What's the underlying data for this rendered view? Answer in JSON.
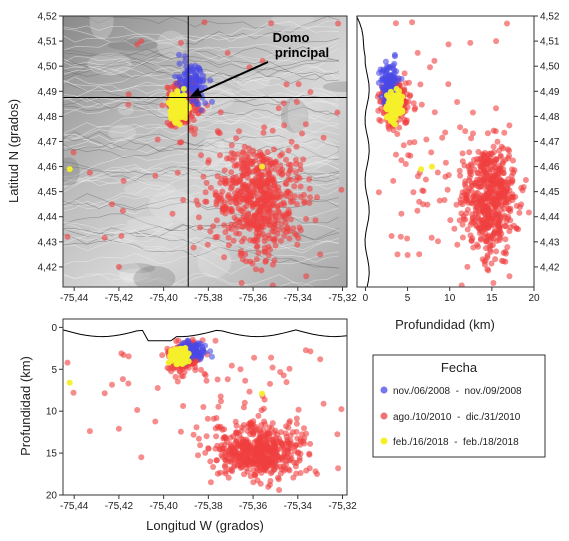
{
  "chart_data": [
    {
      "type": "scatter",
      "panel": "map",
      "title": "",
      "xlabel": "",
      "ylabel": "Latitud N (grados)",
      "xlim": [
        -75.445,
        -75.318
      ],
      "ylim": [
        4.412,
        4.52
      ],
      "xticks": [
        "-75,44",
        "-75,42",
        "-75,40",
        "-75,38",
        "-75,36",
        "-75,34",
        "-75,32"
      ],
      "xtick_values": [
        -75.44,
        -75.42,
        -75.4,
        -75.38,
        -75.36,
        -75.34,
        -75.32
      ],
      "yticks": [
        "4,52",
        "4,51",
        "4,50",
        "4,49",
        "4,48",
        "4,47",
        "4,46",
        "4,45",
        "4,44",
        "4,43",
        "4,42"
      ],
      "ytick_values": [
        4.52,
        4.51,
        4.5,
        4.49,
        4.48,
        4.47,
        4.46,
        4.45,
        4.44,
        4.43,
        4.42
      ],
      "background": "shaded-relief-topography",
      "crosshair": {
        "x": -75.389,
        "y": 4.4875
      },
      "annotation": {
        "lines": [
          "Domo",
          "principal"
        ],
        "arrow_to": [
          -75.389,
          4.4875
        ]
      }
    },
    {
      "type": "scatter",
      "panel": "depth-vs-latitude",
      "xlabel": "Profundidad (km)",
      "ylabel": "",
      "xlim": [
        -1,
        20
      ],
      "ylim": [
        4.412,
        4.52
      ],
      "xticks": [
        "0",
        "5",
        "10",
        "15",
        "20"
      ],
      "xtick_values": [
        0,
        5,
        10,
        15,
        20
      ],
      "yticks": [
        "4,52",
        "4,51",
        "4,50",
        "4,49",
        "4,48",
        "4,47",
        "4,46",
        "4,45",
        "4,44",
        "4,43",
        "4,42"
      ],
      "ytick_values": [
        4.52,
        4.51,
        4.5,
        4.49,
        4.48,
        4.47,
        4.46,
        4.45,
        4.44,
        4.43,
        4.42
      ]
    },
    {
      "type": "scatter",
      "panel": "longitude-vs-depth",
      "xlabel": "Longitud W (grados)",
      "ylabel": "Profundidad (km)",
      "xlim": [
        -75.445,
        -75.318
      ],
      "ylim": [
        20,
        -1
      ],
      "xticks": [
        "-75,44",
        "-75,42",
        "-75,40",
        "-75,38",
        "-75,36",
        "-75,34",
        "-75,32"
      ],
      "xtick_values": [
        -75.44,
        -75.42,
        -75.4,
        -75.38,
        -75.36,
        -75.34,
        -75.32
      ],
      "yticks": [
        "0",
        "5",
        "10",
        "15",
        "20"
      ],
      "ytick_values": [
        0,
        5,
        10,
        15,
        20
      ]
    }
  ],
  "series": [
    {
      "name": "nov./06/2008  -  nov./09/2008",
      "color": "#4a4ae6"
    },
    {
      "name": "ago./10/2010  -  dic./31/2010",
      "color": "#f04040"
    },
    {
      "name": "feb./16/2018  -  feb./18/2018",
      "color": "#f5ef2a"
    }
  ],
  "legend": {
    "title": "Fecha",
    "placement": "lower-right"
  },
  "clusters": [
    {
      "series": 1,
      "lon": -75.391,
      "lat": 4.485,
      "depth": 3.5,
      "sd_lon": 0.0035,
      "sd_lat": 0.004,
      "sd_depth": 0.8,
      "count": 260
    },
    {
      "series": 1,
      "lon": -75.357,
      "lat": 4.448,
      "depth": 14.8,
      "sd_lon": 0.01,
      "sd_lat": 0.011,
      "sd_depth": 1.6,
      "count": 540
    },
    {
      "series": 1,
      "lon": -75.375,
      "lat": 4.465,
      "depth": 8,
      "sd_lon": 0.03,
      "sd_lat": 0.03,
      "sd_depth": 3,
      "count": 70
    },
    {
      "series": 0,
      "lon": -75.387,
      "lat": 4.493,
      "depth": 2.8,
      "sd_lon": 0.003,
      "sd_lat": 0.004,
      "sd_depth": 0.6,
      "count": 110
    },
    {
      "series": 2,
      "lon": -75.393,
      "lat": 4.484,
      "depth": 3.4,
      "sd_lon": 0.0025,
      "sd_lat": 0.0025,
      "sd_depth": 0.5,
      "count": 110
    }
  ],
  "isolated_points": [
    {
      "series": 2,
      "lon": -75.442,
      "lat": 4.459,
      "depth": 6.6
    },
    {
      "series": 2,
      "lon": -75.356,
      "lat": 4.46,
      "depth": 7.9
    },
    {
      "series": 1,
      "lon": -75.443,
      "lat": 4.432,
      "depth": 4.2
    },
    {
      "series": 1,
      "lon": -75.322,
      "lat": 4.517,
      "depth": 16.8
    },
    {
      "series": 1,
      "lon": -75.42,
      "lat": 4.42,
      "depth": 12.1
    },
    {
      "series": 1,
      "lon": -75.33,
      "lat": 4.425,
      "depth": 3.8
    },
    {
      "series": 1,
      "lon": -75.41,
      "lat": 4.51,
      "depth": 15.5
    }
  ]
}
